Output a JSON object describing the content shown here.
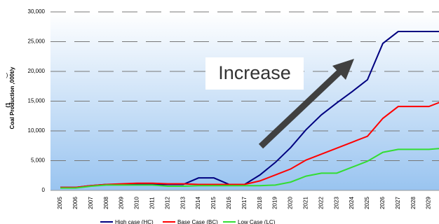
{
  "chart_data": {
    "type": "line",
    "ylabel": "Coal Production ,000t/y",
    "ylabel_prefix": "(1",
    "ylabel_suffix": ")",
    "annotation": "Increase",
    "categories": [
      "2005",
      "2006",
      "2007",
      "2008",
      "2009",
      "2010",
      "2011",
      "2012",
      "2013",
      "2014",
      "2015",
      "2016",
      "2017",
      "2018",
      "2019",
      "2020",
      "2021",
      "2022",
      "2023",
      "2024",
      "2025",
      "2026",
      "2027",
      "2028",
      "2029",
      null
    ],
    "series": [
      {
        "name": "High case (HC)",
        "color": "#000080",
        "values": [
          500,
          500,
          800,
          1000,
          1000,
          1000,
          1000,
          1000,
          1000,
          2100,
          2100,
          1000,
          1000,
          2600,
          4700,
          7200,
          10200,
          12700,
          14700,
          16600,
          18600,
          24700,
          26700,
          26700,
          26700,
          26700
        ]
      },
      {
        "name": "Base Case (BC)",
        "color": "#ff0000",
        "values": [
          500,
          500,
          800,
          1000,
          1100,
          1200,
          1200,
          1100,
          1100,
          1000,
          1000,
          1000,
          1000,
          1600,
          2600,
          3600,
          5100,
          6100,
          7100,
          8100,
          9100,
          12100,
          14100,
          14100,
          14100,
          15100
        ]
      },
      {
        "name": "Low Case (LC)",
        "color": "#33dd33",
        "values": [
          400,
          400,
          700,
          900,
          900,
          900,
          900,
          700,
          700,
          800,
          800,
          800,
          800,
          800,
          900,
          1400,
          2400,
          2900,
          2900,
          3900,
          4900,
          6400,
          6900,
          6900,
          6900,
          7100
        ]
      }
    ],
    "ylim": [
      0,
      30000
    ],
    "yticks": [
      0,
      {
        "value": 5000,
        "label": "5,000"
      },
      {
        "value": 10000,
        "label": "10,000"
      },
      {
        "value": 15000,
        "label": "15,000"
      },
      {
        "value": 20000,
        "label": "20,000"
      },
      {
        "value": 25000,
        "label": "25,000"
      },
      {
        "value": 30000,
        "label": "30,000"
      }
    ],
    "grid": true
  }
}
